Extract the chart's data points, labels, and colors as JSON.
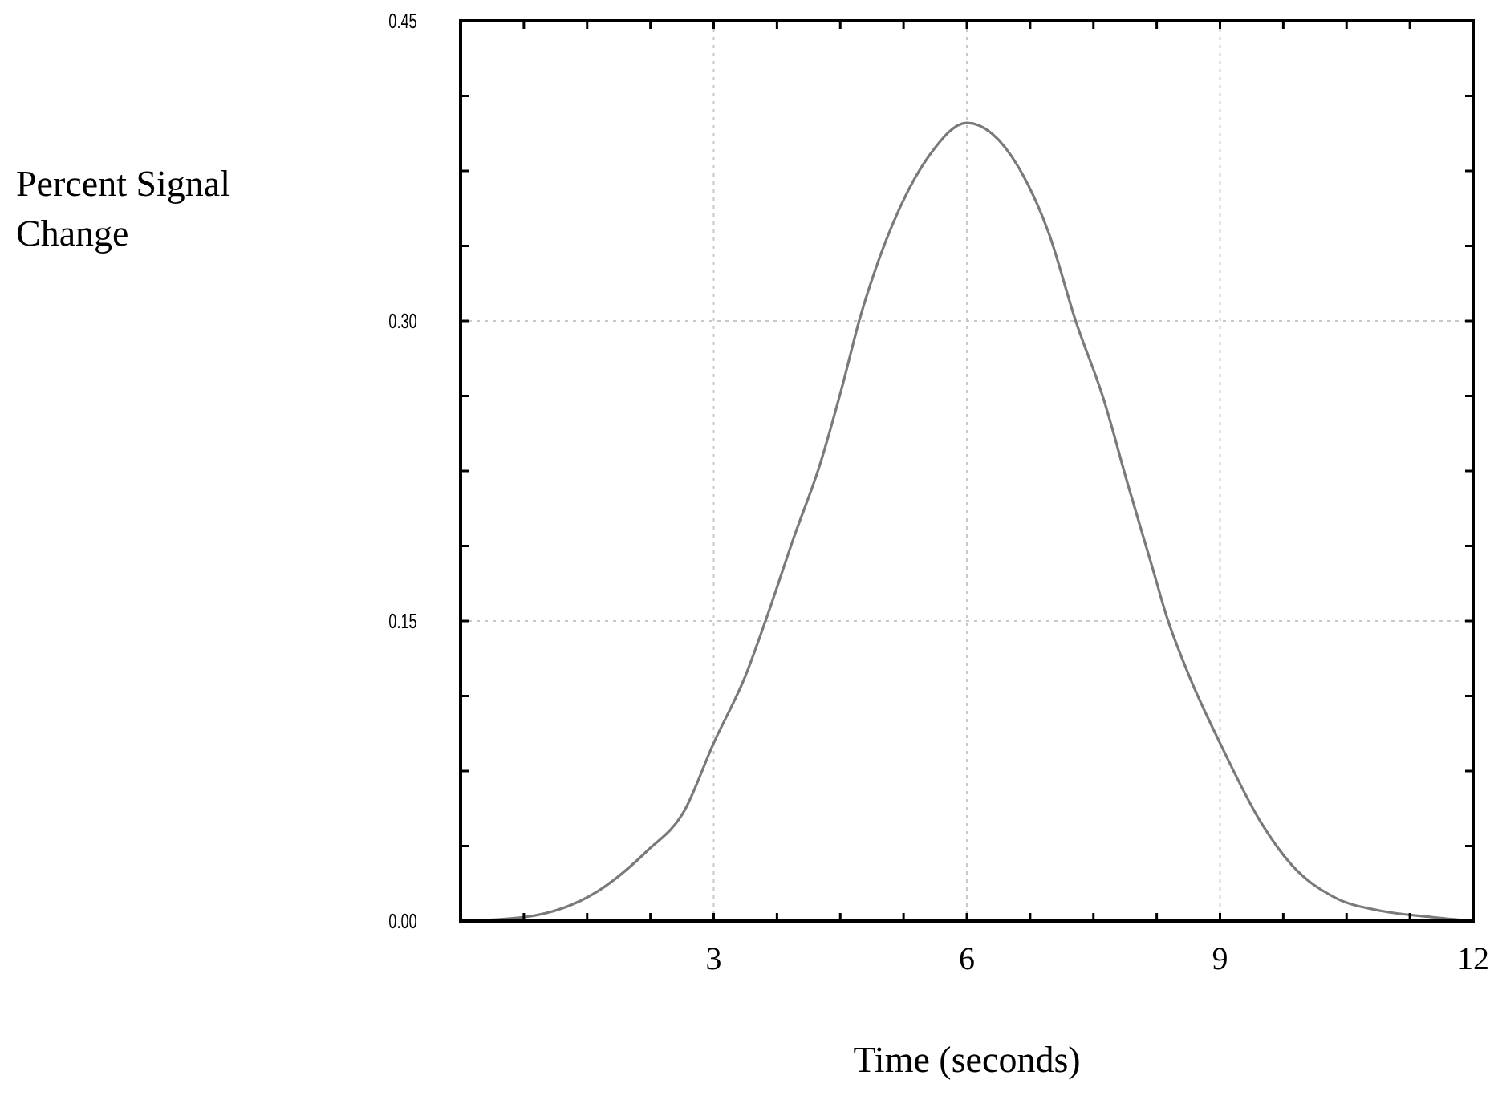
{
  "chart_data": {
    "type": "line",
    "xlabel": "Time (seconds)",
    "ylabel": "Percent Signal\nChange",
    "xlim": [
      0,
      12
    ],
    "ylim": [
      0,
      0.45
    ],
    "xticks": [
      {
        "value": 0.75,
        "label": null
      },
      {
        "value": 1.5,
        "label": null
      },
      {
        "value": 2.25,
        "label": null
      },
      3,
      {
        "value": 3.75,
        "label": null
      },
      {
        "value": 4.5,
        "label": null
      },
      {
        "value": 5.25,
        "label": null
      },
      6,
      {
        "value": 6.75,
        "label": null
      },
      {
        "value": 7.5,
        "label": null
      },
      {
        "value": 8.25,
        "label": null
      },
      9,
      {
        "value": 9.75,
        "label": null
      },
      {
        "value": 10.5,
        "label": null
      },
      {
        "value": 11.25,
        "label": null
      },
      12
    ],
    "yticks": [
      {
        "value": 0,
        "label": "0.00"
      },
      {
        "value": 0.0375,
        "label": null
      },
      {
        "value": 0.075,
        "label": null
      },
      {
        "value": 0.1125,
        "label": null
      },
      {
        "value": 0.15,
        "label": "0.15"
      },
      {
        "value": 0.1875,
        "label": null
      },
      {
        "value": 0.225,
        "label": null
      },
      {
        "value": 0.2625,
        "label": null
      },
      {
        "value": 0.3,
        "label": "0.30"
      },
      {
        "value": 0.3375,
        "label": null
      },
      {
        "value": 0.375,
        "label": null
      },
      {
        "value": 0.4125,
        "label": null
      },
      {
        "value": 0.45,
        "label": "0.45"
      }
    ],
    "grid": true,
    "marker": "none",
    "line_style": "solid",
    "series": [
      {
        "color": "#7a7a7a",
        "x": [
          0,
          0.76,
          1.63,
          2.21,
          2.65,
          3.0,
          3.38,
          3.63,
          3.96,
          4.25,
          4.54,
          4.73,
          4.91,
          5.2,
          5.56,
          6.0,
          6.61,
          6.97,
          7.29,
          7.62,
          7.91,
          8.19,
          8.37,
          8.63,
          9.0,
          9.49,
          9.85,
          10.35,
          10.92,
          11.5,
          12
        ],
        "values": [
          0,
          0.002,
          0.015,
          0.035,
          0.055,
          0.089,
          0.123,
          0.152,
          0.193,
          0.227,
          0.27,
          0.301,
          0.325,
          0.356,
          0.383,
          0.399,
          0.377,
          0.344,
          0.3,
          0.261,
          0.218,
          0.178,
          0.152,
          0.123,
          0.089,
          0.049,
          0.028,
          0.012,
          0.005,
          0.002,
          0
        ]
      }
    ]
  }
}
